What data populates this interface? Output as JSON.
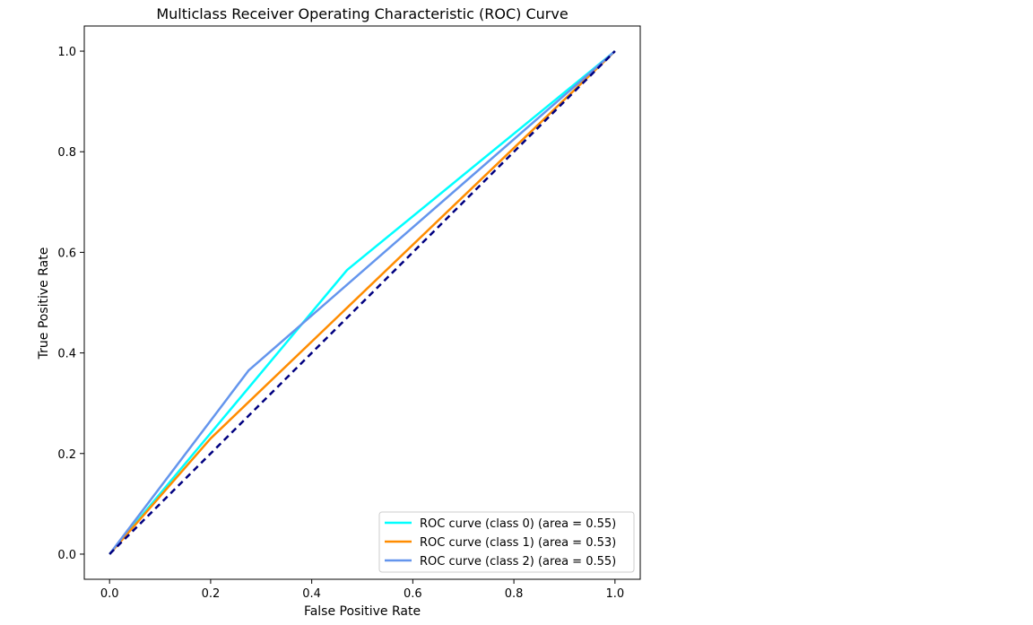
{
  "chart_data": {
    "type": "line",
    "title": "Multiclass Receiver Operating Characteristic (ROC) Curve",
    "xlabel": "False Positive Rate",
    "ylabel": "True Positive Rate",
    "xlim": [
      -0.05,
      1.05
    ],
    "ylim": [
      -0.05,
      1.05
    ],
    "xticks": [
      0.0,
      0.2,
      0.4,
      0.6,
      0.8,
      1.0
    ],
    "yticks": [
      0.0,
      0.2,
      0.4,
      0.6,
      0.8,
      1.0
    ],
    "xtick_labels": [
      "0.0",
      "0.2",
      "0.4",
      "0.6",
      "0.8",
      "1.0"
    ],
    "ytick_labels": [
      "0.0",
      "0.2",
      "0.4",
      "0.6",
      "0.8",
      "1.0"
    ],
    "grid": false,
    "legend_position": "lower right",
    "series": [
      {
        "name": "ROC curve (class 0) (area = 0.55)",
        "color": "#00ffff",
        "x": [
          0.0,
          0.47,
          1.0
        ],
        "y": [
          0.0,
          0.565,
          1.0
        ]
      },
      {
        "name": "ROC curve (class 1) (area = 0.53)",
        "color": "#ff8c00",
        "x": [
          0.0,
          0.2,
          1.0
        ],
        "y": [
          0.0,
          0.23,
          1.0
        ]
      },
      {
        "name": "ROC curve (class 2) (area = 0.55)",
        "color": "#6495ed",
        "x": [
          0.0,
          0.275,
          1.0
        ],
        "y": [
          0.0,
          0.365,
          1.0
        ]
      }
    ],
    "reference_line": {
      "color": "#000080",
      "style": "dashed",
      "x": [
        0.0,
        1.0
      ],
      "y": [
        0.0,
        1.0
      ]
    }
  }
}
